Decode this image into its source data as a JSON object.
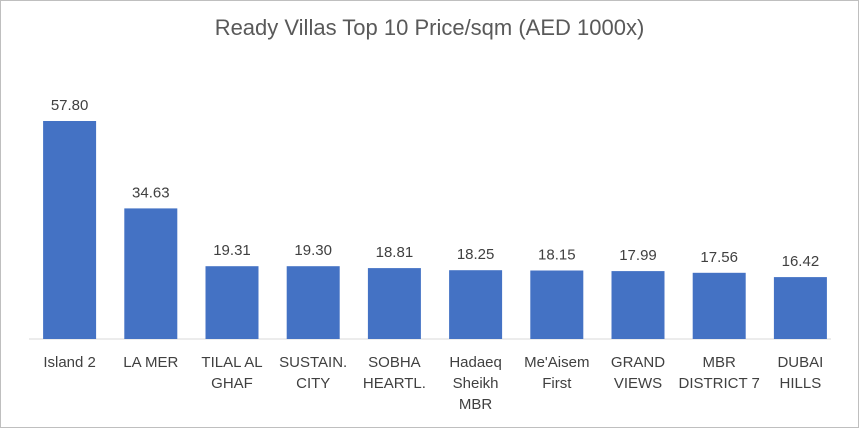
{
  "chart_data": {
    "type": "bar",
    "title": "Ready Villas Top 10 Price/sqm (AED 1000x)",
    "xlabel": "",
    "ylabel": "",
    "grid": false,
    "legend": "none",
    "bar_color": "#4472c4",
    "ylim": [
      0,
      60
    ],
    "categories": [
      [
        "Island 2"
      ],
      [
        "LA MER"
      ],
      [
        "TILAL AL",
        "GHAF"
      ],
      [
        "SUSTAIN.",
        "CITY"
      ],
      [
        "SOBHA",
        "HEARTL."
      ],
      [
        "Hadaeq",
        "Sheikh",
        "MBR"
      ],
      [
        "Me'Aisem",
        "First"
      ],
      [
        "GRAND",
        "VIEWS"
      ],
      [
        "MBR",
        "DISTRICT 7"
      ],
      [
        "DUBAI",
        "HILLS"
      ]
    ],
    "values": [
      57.8,
      34.63,
      19.31,
      19.3,
      18.81,
      18.25,
      18.15,
      17.99,
      17.56,
      16.42
    ],
    "value_labels": [
      "57.80",
      "34.63",
      "19.31",
      "19.30",
      "18.81",
      "18.25",
      "18.15",
      "17.99",
      "17.56",
      "16.42"
    ]
  }
}
